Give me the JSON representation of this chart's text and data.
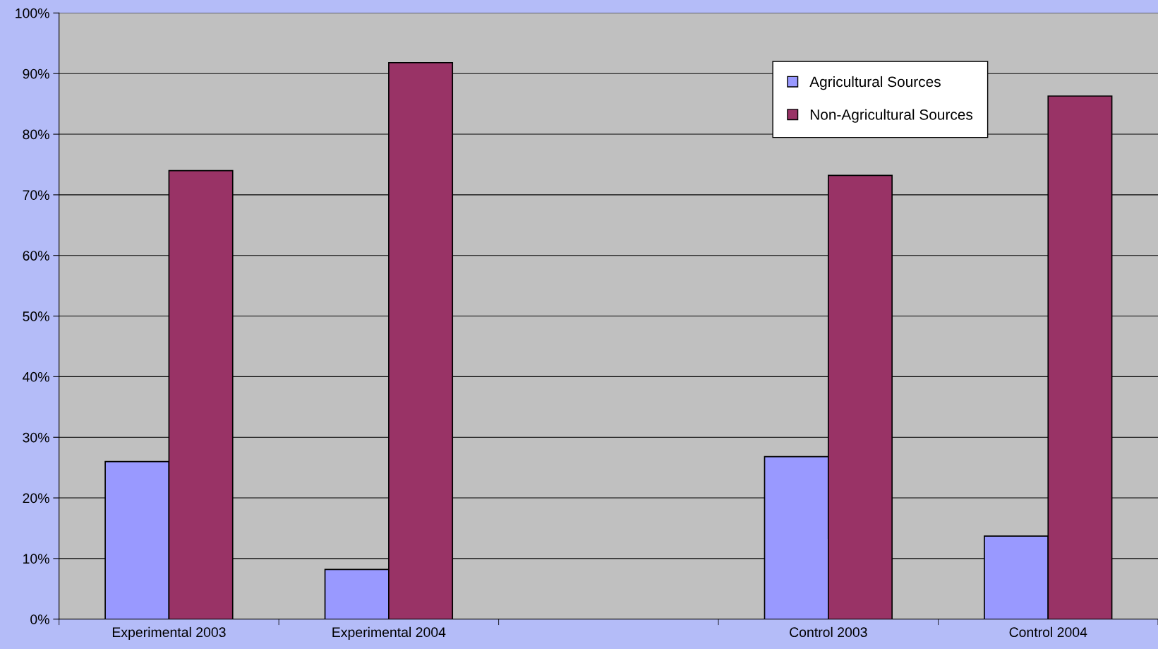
{
  "chart_data": {
    "type": "bar",
    "categories": [
      "Experimental 2003",
      "Experimental 2004",
      null,
      "Control 2003",
      "Control 2004"
    ],
    "series": [
      {
        "name": "Agricultural Sources",
        "color": "#9999ff",
        "values": [
          26,
          8.2,
          null,
          26.8,
          13.7
        ]
      },
      {
        "name": "Non-Agricultural Sources",
        "color": "#993366",
        "values": [
          74,
          91.8,
          null,
          73.2,
          86.3
        ]
      }
    ],
    "ylim": [
      0,
      100
    ],
    "yticks": [
      {
        "value": 0,
        "label": "0%"
      },
      {
        "value": 10,
        "label": "10%"
      },
      {
        "value": 20,
        "label": "20%"
      },
      {
        "value": 30,
        "label": "30%"
      },
      {
        "value": 40,
        "label": "40%"
      },
      {
        "value": 50,
        "label": "50%"
      },
      {
        "value": 60,
        "label": "60%"
      },
      {
        "value": 70,
        "label": "70%"
      },
      {
        "value": 80,
        "label": "80%"
      },
      {
        "value": 90,
        "label": "90%"
      },
      {
        "value": 100,
        "label": "100%"
      }
    ],
    "grid": "y",
    "legend": "top right"
  }
}
